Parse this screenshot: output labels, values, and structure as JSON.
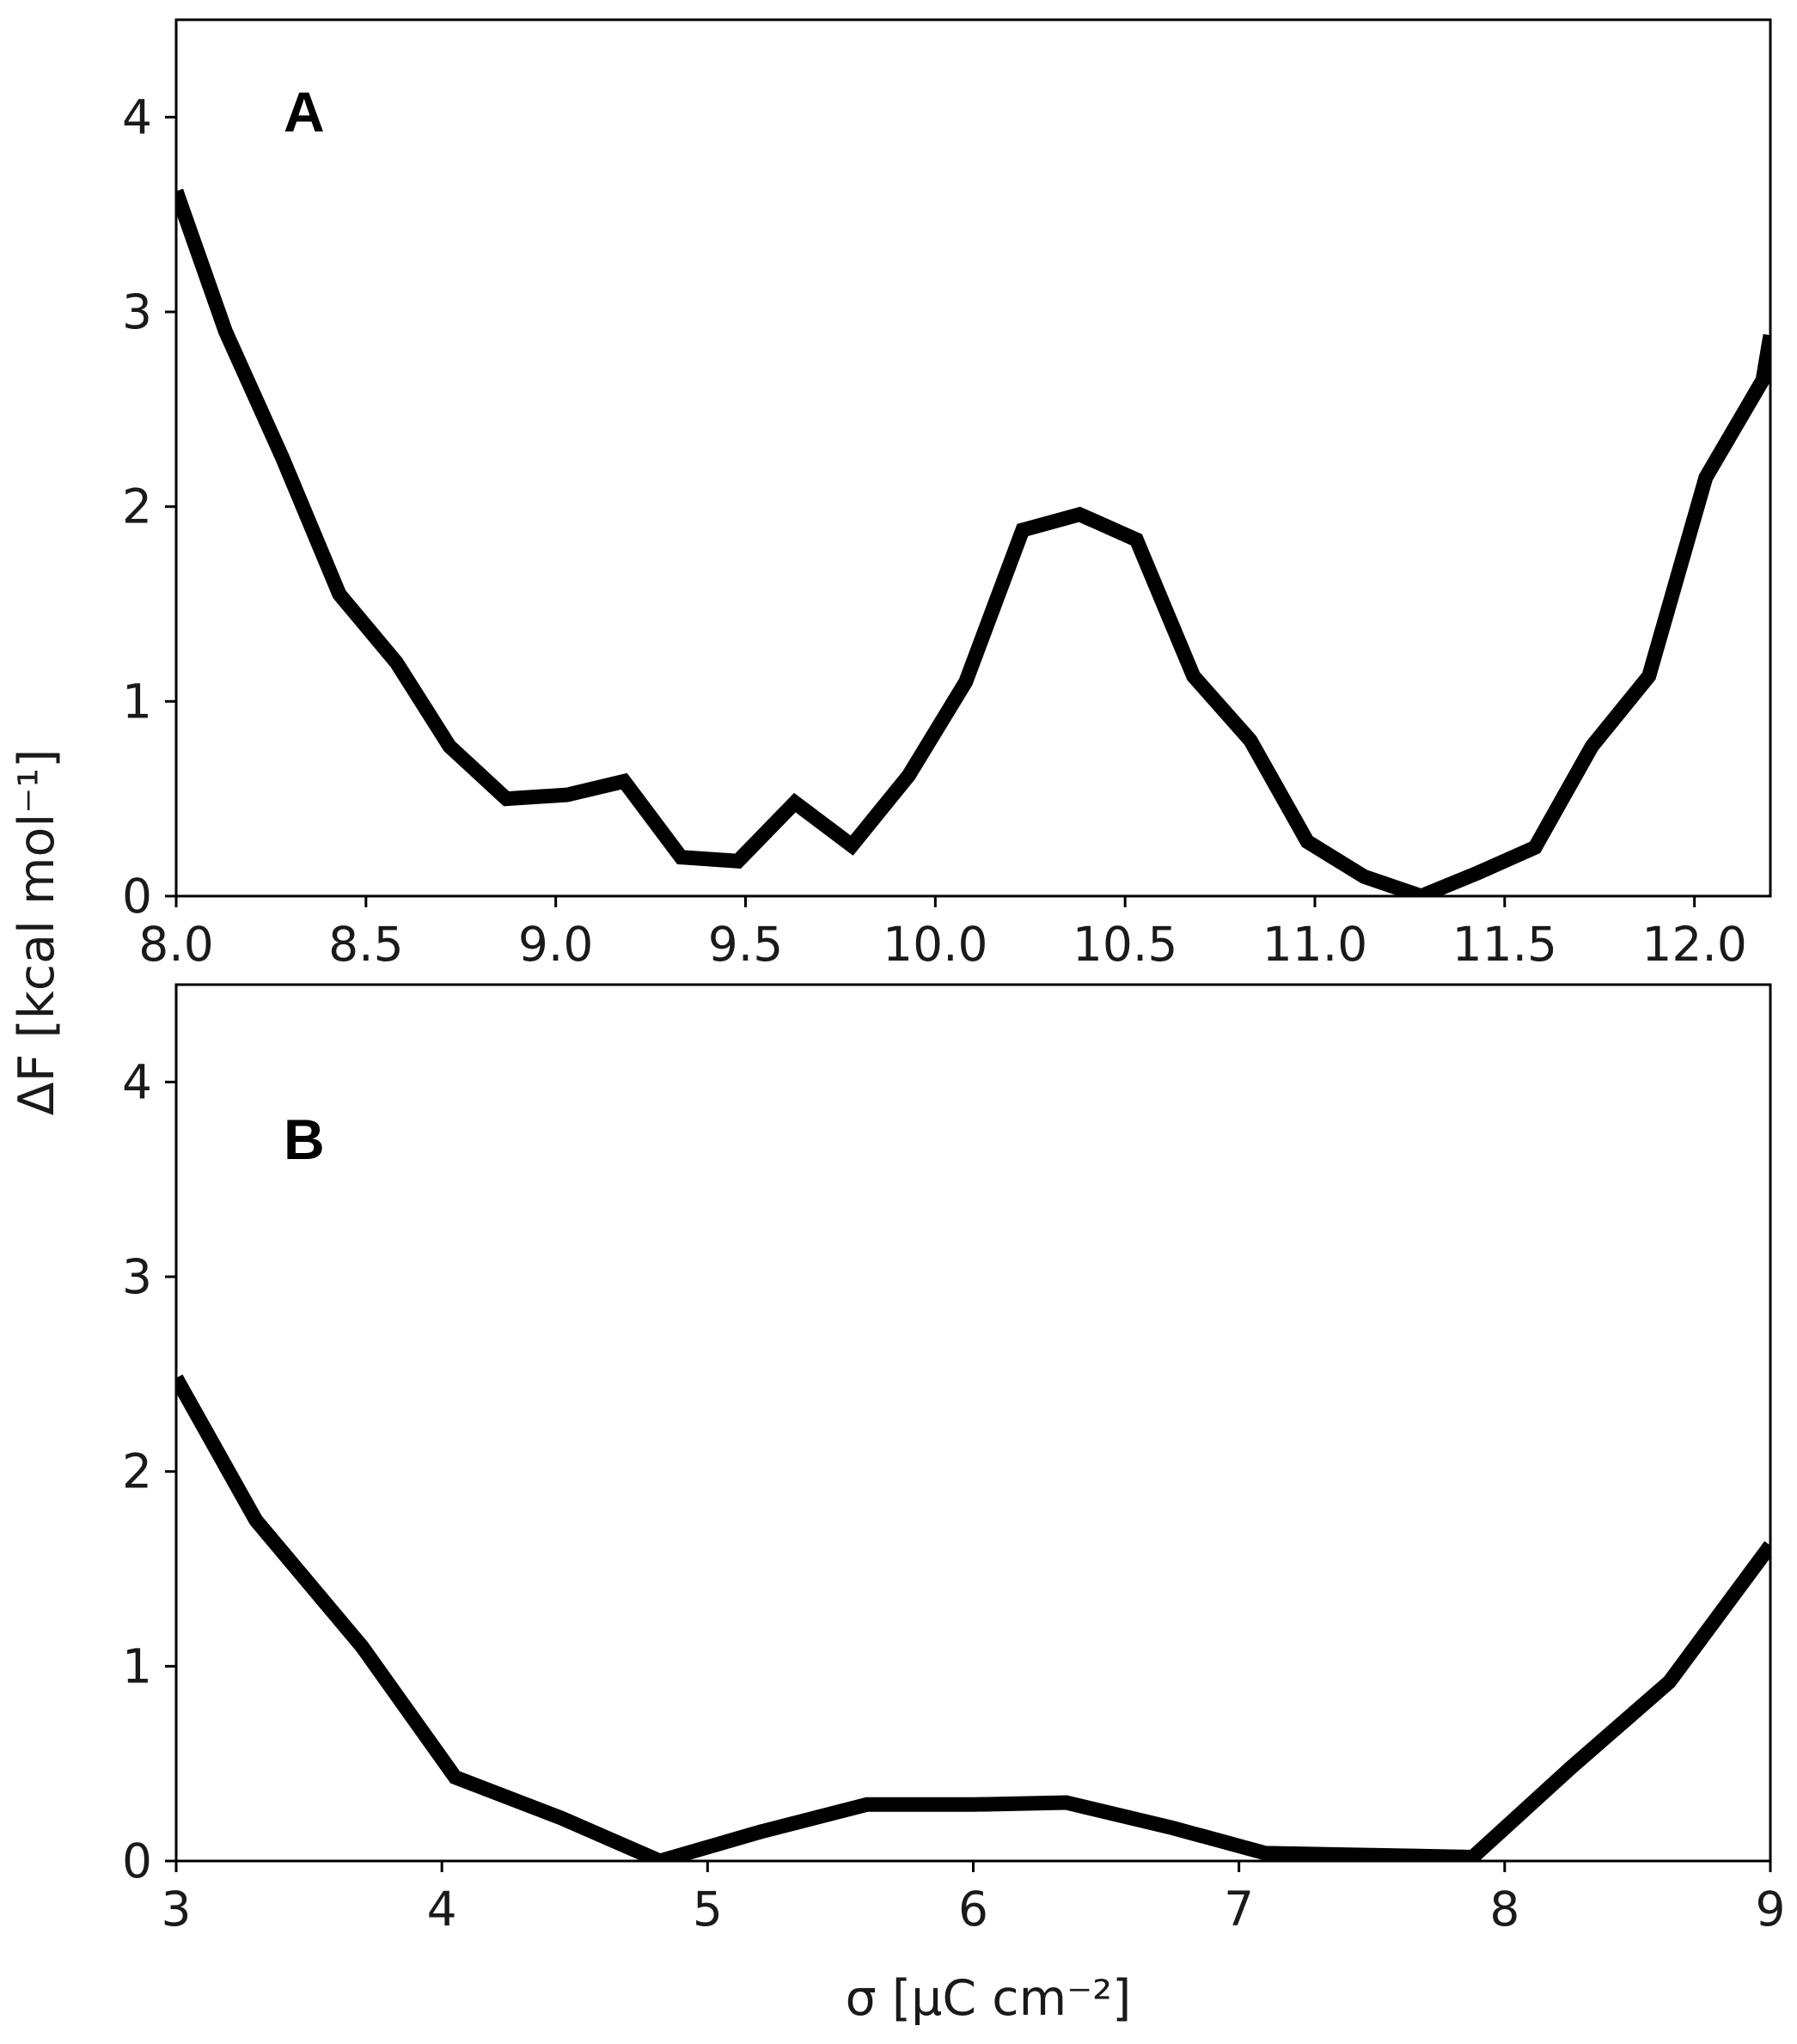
{
  "chart_data": [
    {
      "type": "line",
      "panel_label": "A",
      "xlim": [
        8.0,
        12.2
      ],
      "ylim": [
        0,
        4.5
      ],
      "x_ticks": [
        8.0,
        8.5,
        9.0,
        9.5,
        10.0,
        10.5,
        11.0,
        11.5,
        12.0
      ],
      "x_tick_labels": [
        "8.0",
        "8.5",
        "9.0",
        "9.5",
        "10.0",
        "10.5",
        "11.0",
        "11.5",
        "12.0"
      ],
      "y_ticks": [
        0,
        1,
        2,
        3,
        4
      ],
      "y_tick_labels": [
        "0",
        "1",
        "2",
        "3",
        "4"
      ],
      "series": [
        {
          "color": "#000000",
          "x": [
            8.0,
            8.13,
            8.28,
            8.43,
            8.58,
            8.72,
            8.87,
            9.03,
            9.18,
            9.33,
            9.48,
            9.63,
            9.78,
            9.93,
            10.08,
            10.23,
            10.38,
            10.53,
            10.68,
            10.83,
            10.98,
            11.13,
            11.28,
            11.43,
            11.58,
            11.73,
            11.88,
            12.03,
            12.18,
            12.2
          ],
          "y": [
            3.62,
            2.9,
            2.25,
            1.55,
            1.2,
            0.77,
            0.5,
            0.52,
            0.59,
            0.2,
            0.18,
            0.48,
            0.26,
            0.62,
            1.1,
            1.88,
            1.96,
            1.83,
            1.13,
            0.8,
            0.28,
            0.1,
            0.0,
            0.12,
            0.25,
            0.77,
            1.13,
            2.15,
            2.65,
            2.88
          ]
        }
      ]
    },
    {
      "type": "line",
      "panel_label": "B",
      "xlim": [
        3,
        9
      ],
      "ylim": [
        0,
        4.5
      ],
      "x_ticks": [
        3,
        4,
        5,
        6,
        7,
        8,
        9
      ],
      "x_tick_labels": [
        "3",
        "4",
        "5",
        "6",
        "7",
        "8",
        "9"
      ],
      "y_ticks": [
        0,
        1,
        2,
        3,
        4
      ],
      "y_tick_labels": [
        "0",
        "1",
        "2",
        "3",
        "4"
      ],
      "series": [
        {
          "color": "#000000",
          "x": [
            3.0,
            3.3,
            3.7,
            4.05,
            4.45,
            4.82,
            5.2,
            5.6,
            6.0,
            6.35,
            6.75,
            7.1,
            7.5,
            7.88,
            8.25,
            8.62,
            9.0
          ],
          "y": [
            2.48,
            1.75,
            1.1,
            0.43,
            0.22,
            0.0,
            0.15,
            0.29,
            0.29,
            0.3,
            0.17,
            0.04,
            0.03,
            0.02,
            0.48,
            0.92,
            1.62
          ]
        }
      ]
    }
  ],
  "shared_labels": {
    "ylabel": "ΔF [kcal mol⁻¹]",
    "xlabel": "σ [μC cm⁻²]"
  }
}
